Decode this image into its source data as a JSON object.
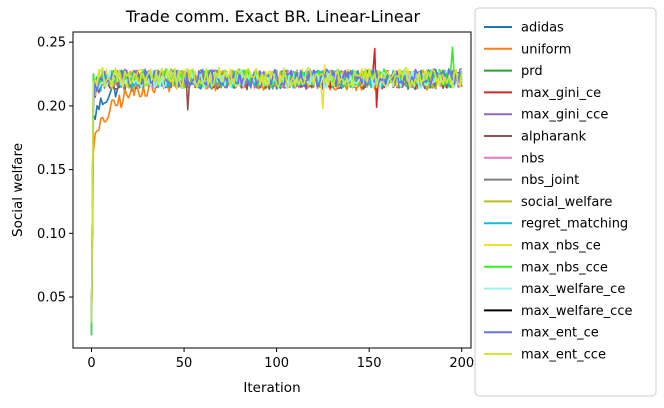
{
  "chart_data": {
    "type": "line",
    "title": "Trade comm. Exact BR. Linear-Linear",
    "xlabel": "Iteration",
    "ylabel": "Social welfare",
    "xlim": [
      -10,
      205
    ],
    "ylim": [
      0.01,
      0.258
    ],
    "xticks": [
      "0",
      "50",
      "100",
      "150",
      "200"
    ],
    "yticks": [
      "0.05",
      "0.10",
      "0.15",
      "0.20",
      "0.25"
    ],
    "xtick_values": [
      0,
      50,
      100,
      150,
      200
    ],
    "ytick_values": [
      0.05,
      0.1,
      0.15,
      0.2,
      0.25
    ],
    "grid": false,
    "legend_position": "outside-right",
    "n_iterations": 201,
    "series": [
      {
        "name": "adidas",
        "color": "#1f77b4",
        "start": 0.02,
        "rise": 0.19,
        "plateau": 0.22,
        "tau": 8.0,
        "noise": 0.0035
      },
      {
        "name": "uniform",
        "color": "#ff7f0e",
        "start": 0.03,
        "rise": 0.17,
        "plateau": 0.219,
        "tau": 12.0,
        "noise": 0.0035
      },
      {
        "name": "prd",
        "color": "#2ca02c",
        "start": 0.025,
        "rise": 0.22,
        "plateau": 0.221,
        "tau": 4.0,
        "noise": 0.0035
      },
      {
        "name": "max_gini_ce",
        "color": "#d62728",
        "start": 0.03,
        "rise": 0.21,
        "plateau": 0.221,
        "tau": 3.0,
        "noise": 0.0035,
        "spikes": [
          [
            153,
            0.245
          ],
          [
            154,
            0.199
          ]
        ]
      },
      {
        "name": "max_gini_cce",
        "color": "#9467bd",
        "start": 0.03,
        "rise": 0.21,
        "plateau": 0.221,
        "tau": 3.0,
        "noise": 0.0035
      },
      {
        "name": "alpharank",
        "color": "#8c564b",
        "start": 0.03,
        "rise": 0.21,
        "plateau": 0.22,
        "tau": 3.0,
        "noise": 0.0035,
        "spikes": [
          [
            52,
            0.197
          ]
        ]
      },
      {
        "name": "nbs",
        "color": "#e377c2",
        "start": 0.03,
        "rise": 0.21,
        "plateau": 0.221,
        "tau": 3.0,
        "noise": 0.0035
      },
      {
        "name": "nbs_joint",
        "color": "#7f7f7f",
        "start": 0.03,
        "rise": 0.21,
        "plateau": 0.221,
        "tau": 3.0,
        "noise": 0.0035
      },
      {
        "name": "social_welfare",
        "color": "#bcbd22",
        "start": 0.03,
        "rise": 0.21,
        "plateau": 0.221,
        "tau": 3.0,
        "noise": 0.0035
      },
      {
        "name": "regret_matching",
        "color": "#17becf",
        "start": 0.03,
        "rise": 0.21,
        "plateau": 0.221,
        "tau": 3.0,
        "noise": 0.0035
      },
      {
        "name": "max_nbs_ce",
        "color": "#f0e130",
        "start": 0.03,
        "rise": 0.22,
        "plateau": 0.222,
        "tau": 2.0,
        "noise": 0.0035,
        "spikes": [
          [
            125,
            0.198
          ],
          [
            126,
            0.232
          ]
        ]
      },
      {
        "name": "max_nbs_cce",
        "color": "#33ee22",
        "start": 0.02,
        "rise": 0.22,
        "plateau": 0.222,
        "tau": 2.0,
        "noise": 0.0035,
        "spikes": [
          [
            195,
            0.246
          ]
        ]
      },
      {
        "name": "max_welfare_ce",
        "color": "#99f5f0",
        "start": 0.03,
        "rise": 0.21,
        "plateau": 0.221,
        "tau": 3.0,
        "noise": 0.0035
      },
      {
        "name": "max_welfare_cce",
        "color": "#000000",
        "start": 0.03,
        "rise": 0.21,
        "plateau": 0.221,
        "tau": 3.0,
        "noise": 0.0,
        "hidden": true
      },
      {
        "name": "max_ent_ce",
        "color": "#6670f0",
        "start": 0.03,
        "rise": 0.21,
        "plateau": 0.222,
        "tau": 3.0,
        "noise": 0.0035
      },
      {
        "name": "max_ent_cce",
        "color": "#cce63a",
        "start": 0.03,
        "rise": 0.22,
        "plateau": 0.222,
        "tau": 2.0,
        "noise": 0.004
      }
    ]
  }
}
